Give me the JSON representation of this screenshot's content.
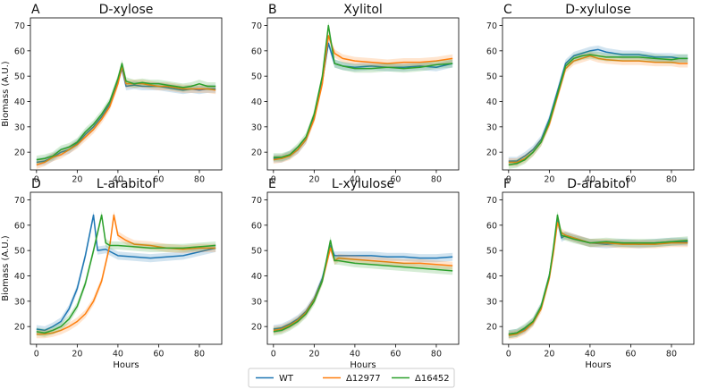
{
  "legend": {
    "placement": "bottom-center",
    "entries": [
      {
        "name": "WT",
        "color": "#1f77b4"
      },
      {
        "name": "Δ12977",
        "color": "#ff7f0e"
      },
      {
        "name": "Δ16452",
        "color": "#2ca02c"
      }
    ]
  },
  "chart_data": [
    {
      "type": "line",
      "panel": "A",
      "title": "D-xylose",
      "xlabel": "",
      "ylabel": "Biomass (A.U.)",
      "xlim": [
        -3,
        91
      ],
      "ylim": [
        13,
        73
      ],
      "xticks": [
        0,
        20,
        40,
        60,
        80
      ],
      "yticks": [
        20,
        30,
        40,
        50,
        60,
        70
      ],
      "series": [
        {
          "name": "WT",
          "x": [
            0,
            4,
            8,
            12,
            16,
            20,
            24,
            28,
            32,
            36,
            40,
            42,
            44,
            48,
            52,
            56,
            60,
            64,
            68,
            72,
            76,
            80,
            84,
            88
          ],
          "y": [
            16,
            16.5,
            18,
            20,
            21,
            23.5,
            27,
            30,
            34,
            39,
            48,
            53,
            46,
            46.5,
            46,
            46,
            46,
            45.5,
            45,
            44.5,
            45,
            44.5,
            45,
            45
          ]
        },
        {
          "name": "Δ12977",
          "x": [
            0,
            4,
            8,
            12,
            16,
            20,
            24,
            28,
            32,
            36,
            40,
            42,
            44,
            48,
            52,
            56,
            60,
            64,
            68,
            72,
            76,
            80,
            84,
            88
          ],
          "y": [
            15,
            16,
            18,
            19,
            21,
            23,
            26,
            29,
            33,
            38,
            47,
            54,
            47,
            47,
            47,
            46.5,
            46,
            46,
            45.5,
            45,
            45,
            45,
            45,
            44.5
          ]
        },
        {
          "name": "Δ16452",
          "x": [
            0,
            4,
            8,
            12,
            16,
            20,
            24,
            28,
            32,
            36,
            40,
            42,
            44,
            48,
            52,
            56,
            60,
            64,
            68,
            72,
            76,
            80,
            84,
            88
          ],
          "y": [
            17,
            17.5,
            18.5,
            21,
            22,
            24,
            28,
            31,
            35,
            40,
            49,
            55,
            48,
            47,
            47.5,
            47,
            47,
            46.5,
            46,
            45.5,
            46,
            47,
            46,
            46
          ]
        }
      ]
    },
    {
      "type": "line",
      "panel": "B",
      "title": "Xylitol",
      "xlabel": "",
      "ylabel": "",
      "xlim": [
        -3,
        91
      ],
      "ylim": [
        13,
        73
      ],
      "xticks": [
        0,
        20,
        40,
        60,
        80
      ],
      "yticks": [
        20,
        30,
        40,
        50,
        60,
        70
      ],
      "series": [
        {
          "name": "WT",
          "x": [
            0,
            4,
            8,
            12,
            16,
            20,
            24,
            27,
            30,
            34,
            40,
            48,
            56,
            64,
            72,
            80,
            88
          ],
          "y": [
            17.5,
            17.5,
            19,
            21,
            25,
            34,
            48,
            63,
            55,
            54,
            53.5,
            54,
            53.5,
            53.5,
            54,
            53.5,
            55
          ]
        },
        {
          "name": "Δ12977",
          "x": [
            0,
            4,
            8,
            12,
            16,
            20,
            24,
            27,
            30,
            34,
            40,
            48,
            56,
            64,
            72,
            80,
            88
          ],
          "y": [
            17,
            17.5,
            18.5,
            21,
            25,
            33,
            47,
            66,
            59,
            57,
            56,
            55.5,
            55,
            55.5,
            55.5,
            56,
            57
          ]
        },
        {
          "name": "Δ16452",
          "x": [
            0,
            4,
            8,
            12,
            16,
            20,
            24,
            27,
            30,
            34,
            40,
            48,
            56,
            64,
            72,
            80,
            88
          ],
          "y": [
            18,
            18,
            19,
            22,
            26,
            35,
            50,
            70,
            55,
            54,
            53,
            53,
            53.5,
            53,
            53.5,
            54.5,
            55
          ]
        }
      ]
    },
    {
      "type": "line",
      "panel": "C",
      "title": "D-xylulose",
      "xlabel": "",
      "ylabel": "",
      "xlim": [
        -3,
        91
      ],
      "ylim": [
        13,
        73
      ],
      "xticks": [
        0,
        20,
        40,
        60,
        80
      ],
      "yticks": [
        20,
        30,
        40,
        50,
        60,
        70
      ],
      "series": [
        {
          "name": "WT",
          "x": [
            0,
            4,
            8,
            12,
            16,
            20,
            24,
            28,
            32,
            36,
            40,
            44,
            48,
            56,
            64,
            72,
            80,
            84,
            88
          ],
          "y": [
            16.5,
            16.5,
            18.5,
            21,
            25,
            33,
            44,
            55,
            58,
            59,
            60,
            60.5,
            59.5,
            58.5,
            58.5,
            57.5,
            57.5,
            57,
            57
          ]
        },
        {
          "name": "Δ12977",
          "x": [
            0,
            4,
            8,
            12,
            16,
            20,
            24,
            28,
            32,
            36,
            40,
            44,
            48,
            56,
            64,
            72,
            80,
            84,
            88
          ],
          "y": [
            16,
            16,
            17.5,
            20,
            24,
            31,
            42,
            53,
            56,
            57,
            58,
            57,
            56.5,
            56,
            56,
            55.5,
            55.5,
            55,
            55
          ]
        },
        {
          "name": "Δ16452",
          "x": [
            0,
            4,
            8,
            12,
            16,
            20,
            24,
            28,
            32,
            36,
            40,
            44,
            48,
            56,
            64,
            72,
            80,
            84,
            88
          ],
          "y": [
            15,
            15.5,
            17,
            20,
            24,
            32,
            43,
            54,
            57,
            58,
            58.5,
            58,
            57.5,
            57.5,
            57.5,
            57,
            56.5,
            57,
            57
          ]
        }
      ]
    },
    {
      "type": "line",
      "panel": "D",
      "title": "L-arabitol",
      "xlabel": "Hours",
      "ylabel": "Biomass (A.U.)",
      "xlim": [
        -3,
        91
      ],
      "ylim": [
        13,
        73
      ],
      "xticks": [
        0,
        20,
        40,
        60,
        80
      ],
      "yticks": [
        20,
        30,
        40,
        50,
        60,
        70
      ],
      "series": [
        {
          "name": "WT",
          "x": [
            0,
            4,
            8,
            12,
            16,
            20,
            24,
            28,
            30,
            34,
            40,
            48,
            56,
            64,
            72,
            80,
            88
          ],
          "y": [
            19,
            18.5,
            20,
            22,
            27,
            35,
            48,
            64,
            50,
            50.5,
            48,
            47.5,
            47,
            47.5,
            48,
            49.5,
            51
          ]
        },
        {
          "name": "Δ12977",
          "x": [
            0,
            4,
            8,
            12,
            16,
            20,
            24,
            28,
            32,
            36,
            38,
            40,
            44,
            48,
            56,
            64,
            72,
            80,
            88
          ],
          "y": [
            17,
            17,
            17.5,
            18.5,
            20,
            22,
            25,
            30,
            38,
            52,
            64,
            56,
            54,
            52.5,
            52,
            51,
            50.5,
            51,
            51
          ]
        },
        {
          "name": "Δ16452",
          "x": [
            0,
            4,
            8,
            12,
            16,
            20,
            24,
            28,
            32,
            34,
            36,
            40,
            48,
            56,
            64,
            72,
            80,
            88
          ],
          "y": [
            18,
            17.5,
            18.5,
            20,
            23,
            28,
            37,
            50,
            64,
            53,
            52,
            52,
            51.5,
            51,
            51,
            51,
            51.5,
            52
          ]
        }
      ]
    },
    {
      "type": "line",
      "panel": "E",
      "title": "L-xylulose",
      "xlabel": "Hours",
      "ylabel": "",
      "xlim": [
        -3,
        91
      ],
      "ylim": [
        13,
        73
      ],
      "xticks": [
        0,
        20,
        40,
        60,
        80
      ],
      "yticks": [
        20,
        30,
        40,
        50,
        60,
        70
      ],
      "series": [
        {
          "name": "WT",
          "x": [
            0,
            4,
            8,
            12,
            16,
            20,
            24,
            28,
            30,
            32,
            40,
            48,
            56,
            64,
            72,
            80,
            88
          ],
          "y": [
            19,
            19.5,
            21,
            23,
            26,
            31,
            39,
            52,
            48,
            48,
            48,
            48,
            47.5,
            47.5,
            47,
            47,
            47.5
          ]
        },
        {
          "name": "Δ12977",
          "x": [
            0,
            4,
            8,
            12,
            16,
            20,
            24,
            28,
            30,
            32,
            40,
            48,
            56,
            64,
            72,
            80,
            88
          ],
          "y": [
            18.5,
            19,
            20.5,
            22.5,
            25.5,
            30.5,
            38,
            51,
            46,
            47,
            46.5,
            46,
            45.5,
            45,
            45,
            44.5,
            44
          ]
        },
        {
          "name": "Δ16452",
          "x": [
            0,
            4,
            8,
            12,
            16,
            20,
            24,
            28,
            30,
            32,
            40,
            48,
            56,
            64,
            72,
            80,
            88
          ],
          "y": [
            18,
            18.5,
            20,
            22,
            25,
            30,
            38,
            54,
            46,
            46,
            45,
            44.5,
            44,
            43.5,
            43,
            42.5,
            42
          ]
        }
      ]
    },
    {
      "type": "line",
      "panel": "F",
      "title": "D-arabitol",
      "xlabel": "Hours",
      "ylabel": "",
      "xlim": [
        -3,
        91
      ],
      "ylim": [
        13,
        73
      ],
      "xticks": [
        0,
        20,
        40,
        60,
        80
      ],
      "yticks": [
        20,
        30,
        40,
        50,
        60,
        70
      ],
      "series": [
        {
          "name": "WT",
          "x": [
            0,
            4,
            8,
            12,
            16,
            20,
            22,
            24,
            26,
            28,
            32,
            40,
            48,
            56,
            64,
            72,
            80,
            88
          ],
          "y": [
            17,
            17.5,
            19,
            22,
            28,
            40,
            50,
            62,
            55,
            56,
            55,
            53,
            52.5,
            53,
            52.5,
            53,
            53.5,
            53.5
          ]
        },
        {
          "name": "Δ12977",
          "x": [
            0,
            4,
            8,
            12,
            16,
            20,
            22,
            24,
            26,
            28,
            32,
            40,
            48,
            56,
            64,
            72,
            80,
            88
          ],
          "y": [
            16.5,
            17,
            18.5,
            21.5,
            27,
            39,
            49,
            61,
            57,
            56,
            55,
            53,
            53,
            52.5,
            52.5,
            52.5,
            53,
            53
          ]
        },
        {
          "name": "Δ16452",
          "x": [
            0,
            4,
            8,
            12,
            16,
            20,
            22,
            24,
            26,
            28,
            32,
            40,
            48,
            56,
            64,
            72,
            80,
            88
          ],
          "y": [
            17,
            17.5,
            19.5,
            22,
            28,
            40,
            51,
            64,
            56,
            55.5,
            54.5,
            53,
            53.5,
            53,
            53,
            53,
            53.5,
            54
          ]
        }
      ]
    }
  ]
}
